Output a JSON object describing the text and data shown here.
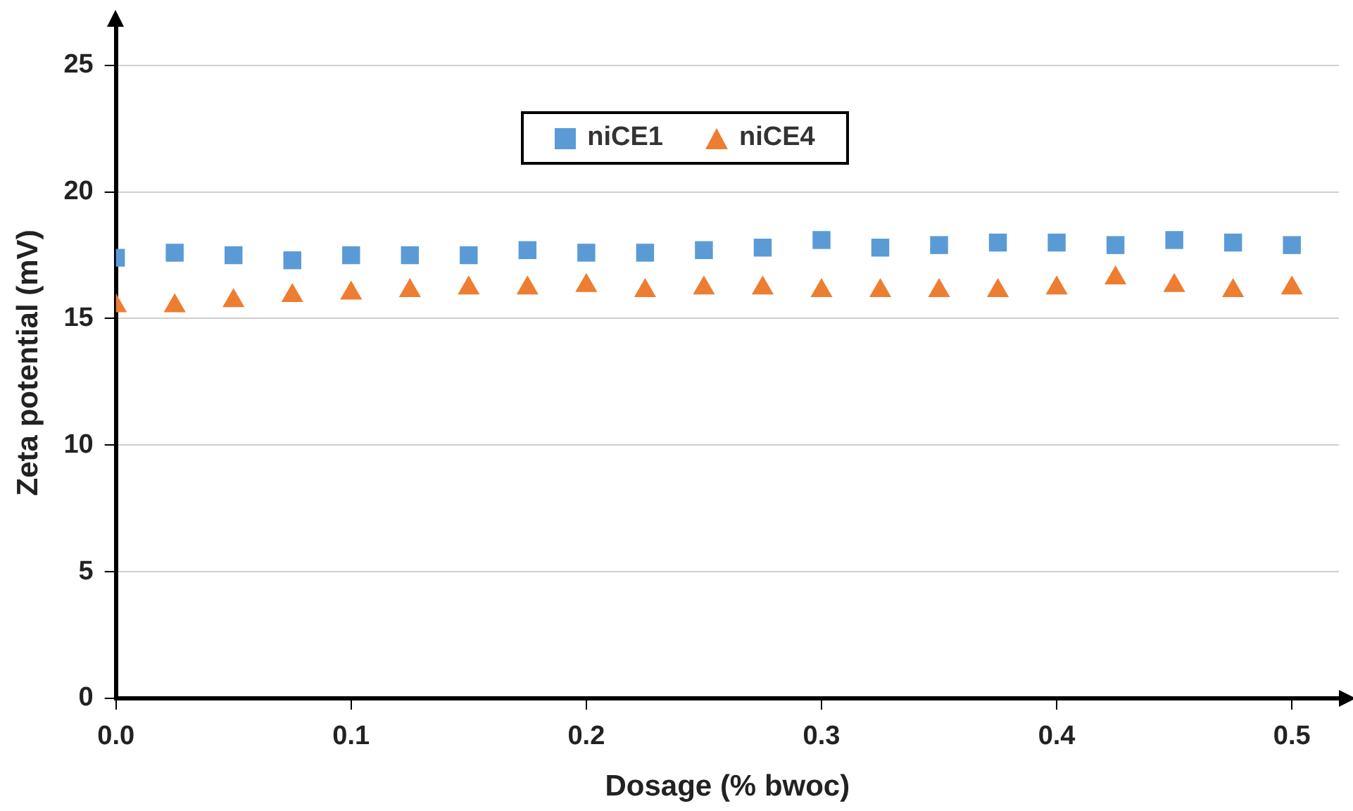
{
  "chart_data": {
    "type": "scatter",
    "xlabel": "Dosage (% bwoc)",
    "ylabel": "Zeta potential (mV)",
    "x": [
      0,
      0.025,
      0.05,
      0.075,
      0.1,
      0.125,
      0.15,
      0.175,
      0.2,
      0.225,
      0.25,
      0.275,
      0.3,
      0.325,
      0.35,
      0.375,
      0.4,
      0.425,
      0.45,
      0.475,
      0.5
    ],
    "series": [
      {
        "name": "niCE1",
        "color": "#5b9bd5",
        "marker": "square",
        "values": [
          17.4,
          17.6,
          17.5,
          17.3,
          17.5,
          17.5,
          17.5,
          17.7,
          17.6,
          17.6,
          17.7,
          17.8,
          18.1,
          17.8,
          17.9,
          18.0,
          18.0,
          17.9,
          18.1,
          18.0,
          17.9
        ]
      },
      {
        "name": "niCE4",
        "color": "#ed7d31",
        "marker": "triangle",
        "values": [
          15.5,
          15.5,
          15.7,
          15.9,
          16.0,
          16.1,
          16.2,
          16.2,
          16.3,
          16.1,
          16.2,
          16.2,
          16.1,
          16.1,
          16.1,
          16.1,
          16.2,
          16.6,
          16.3,
          16.1,
          16.2
        ]
      }
    ],
    "xlim": [
      0,
      0.52
    ],
    "xticks": [
      {
        "value": 0,
        "label": "0.0"
      },
      0.1,
      0.2,
      0.3,
      0.4,
      0.5
    ],
    "ylim": [
      0,
      26.5
    ],
    "yticks": [
      0,
      5,
      10,
      15,
      20,
      25
    ],
    "grid": "y",
    "legend": "top"
  }
}
